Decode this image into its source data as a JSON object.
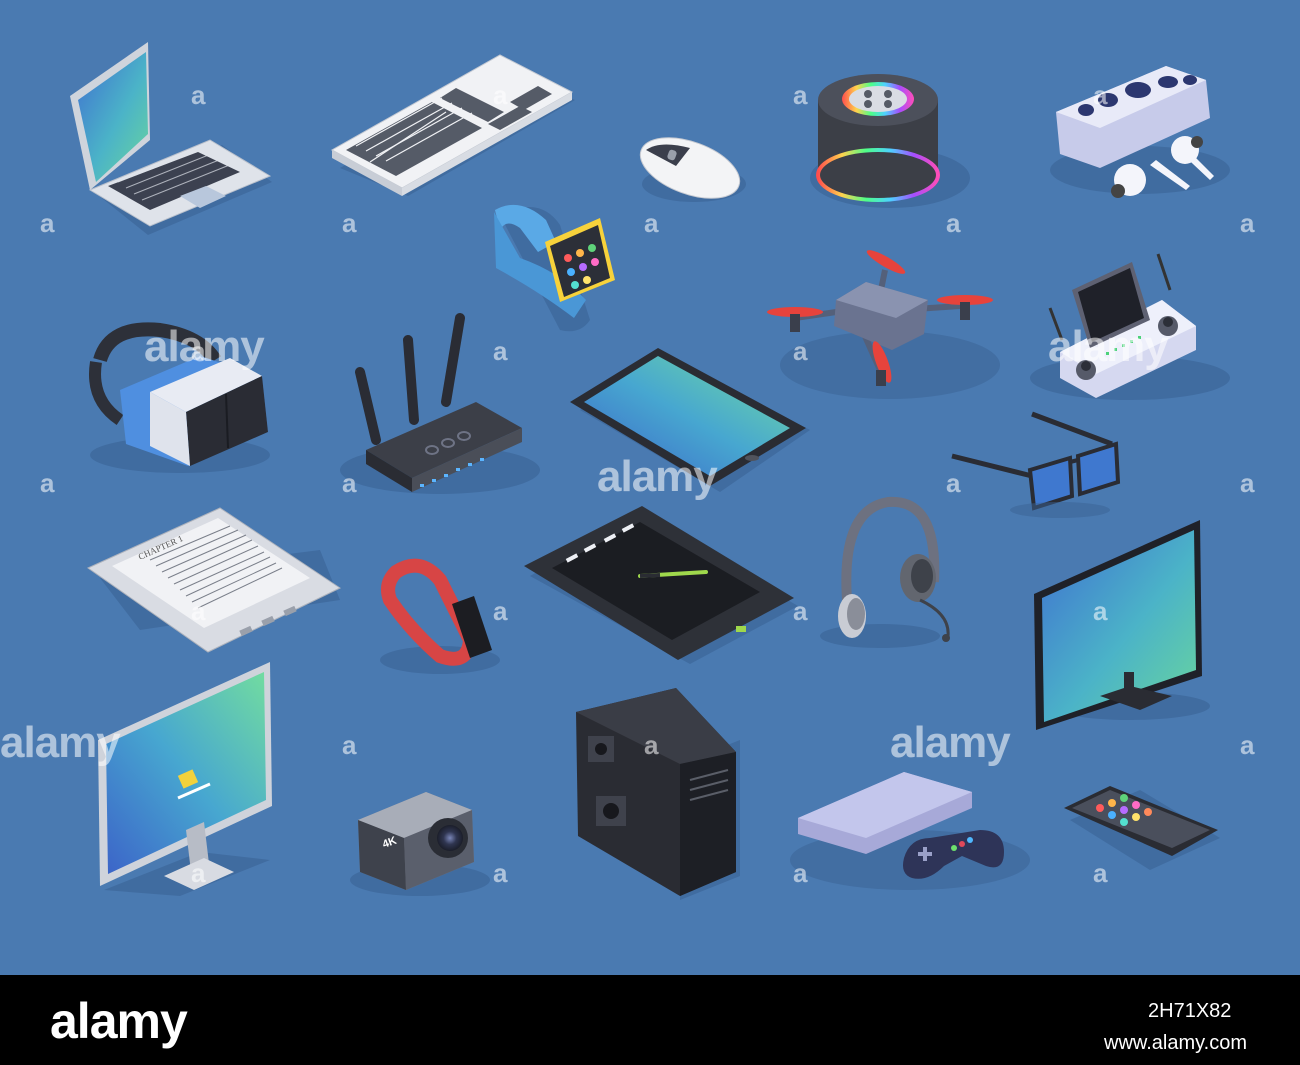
{
  "watermark": {
    "small_mark": "a",
    "big_mark": "alamy"
  },
  "devices": [
    {
      "name": "laptop",
      "icon": "laptop-icon"
    },
    {
      "name": "keyboard",
      "icon": "keyboard-icon"
    },
    {
      "name": "mouse",
      "icon": "mouse-icon"
    },
    {
      "name": "smart-speaker",
      "icon": "smart-speaker-icon"
    },
    {
      "name": "earbuds-case",
      "icon": "earbuds-icon"
    },
    {
      "name": "smartwatch",
      "icon": "smartwatch-icon"
    },
    {
      "name": "drone",
      "icon": "drone-icon"
    },
    {
      "name": "drone-controller",
      "icon": "controller-icon"
    },
    {
      "name": "vr-headset",
      "icon": "vr-headset-icon"
    },
    {
      "name": "router",
      "icon": "router-icon"
    },
    {
      "name": "tablet",
      "icon": "tablet-icon"
    },
    {
      "name": "smart-glasses",
      "icon": "glasses-icon"
    },
    {
      "name": "e-reader",
      "icon": "ereader-icon"
    },
    {
      "name": "fitness-band",
      "icon": "fitness-band-icon"
    },
    {
      "name": "graphics-tablet",
      "icon": "graphics-tablet-icon"
    },
    {
      "name": "headset",
      "icon": "headset-icon"
    },
    {
      "name": "tv-monitor",
      "icon": "tv-icon"
    },
    {
      "name": "desktop-monitor",
      "icon": "monitor-icon"
    },
    {
      "name": "action-camera",
      "icon": "camera-icon"
    },
    {
      "name": "pc-tower",
      "icon": "pc-tower-icon"
    },
    {
      "name": "game-console",
      "icon": "game-console-icon"
    },
    {
      "name": "smartphone",
      "icon": "smartphone-icon"
    }
  ],
  "ereader": {
    "chapter": "CHAPTER 1"
  },
  "camera": {
    "label": "4K"
  },
  "footer": {
    "logo": "alamy",
    "image_id": "2H71X82",
    "url": "www.alamy.com"
  },
  "colors": {
    "background": "#4a7ab1",
    "footer": "#000000",
    "screen_gradient_start": "#3a7bd5",
    "screen_gradient_end": "#5fd3a8"
  }
}
